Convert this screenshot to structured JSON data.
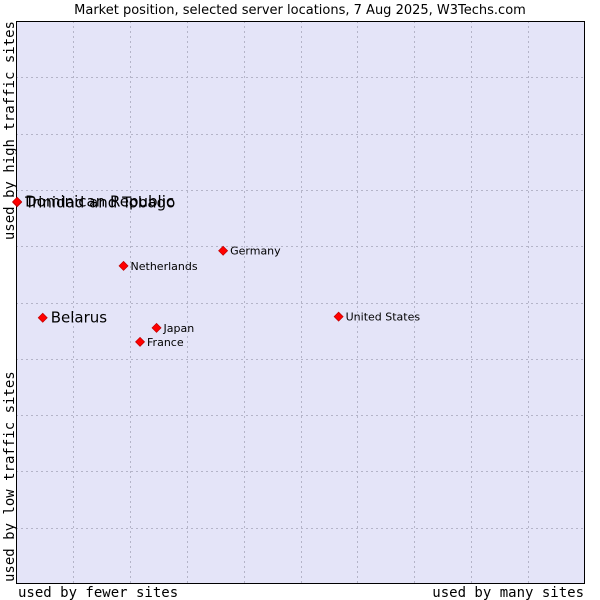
{
  "chart_data": {
    "type": "scatter",
    "title": "Market position, selected server locations, 7 Aug 2025, W3Techs.com",
    "xlabel_left": "used by fewer sites",
    "xlabel_right": "used by many sites",
    "ylabel_bottom": "used by low traffic sites",
    "ylabel_top": "used by high traffic sites",
    "xlim": [
      0,
      100
    ],
    "ylim": [
      0,
      100
    ],
    "grid": true,
    "colors": {
      "plot_bg": "#e4e4f8",
      "grid": "#b4b4c8",
      "marker": "#ff0000",
      "marker_edge": "#c00000",
      "border": "#000000"
    },
    "points": [
      {
        "name": "Trinidad and Tobago",
        "x": 0.2,
        "y": 67.8,
        "emphasis": true
      },
      {
        "name": "Dominican Republic",
        "x": 0.2,
        "y": 67.9,
        "emphasis": true
      },
      {
        "name": "Belarus",
        "x": 4.7,
        "y": 47.3,
        "emphasis": true
      },
      {
        "name": "Germany",
        "x": 36.4,
        "y": 59.2,
        "emphasis": false
      },
      {
        "name": "Netherlands",
        "x": 18.9,
        "y": 56.5,
        "emphasis": false
      },
      {
        "name": "Japan",
        "x": 24.7,
        "y": 45.5,
        "emphasis": false
      },
      {
        "name": "France",
        "x": 21.8,
        "y": 43.0,
        "emphasis": false
      },
      {
        "name": "United States",
        "x": 56.7,
        "y": 47.5,
        "emphasis": false
      }
    ]
  }
}
